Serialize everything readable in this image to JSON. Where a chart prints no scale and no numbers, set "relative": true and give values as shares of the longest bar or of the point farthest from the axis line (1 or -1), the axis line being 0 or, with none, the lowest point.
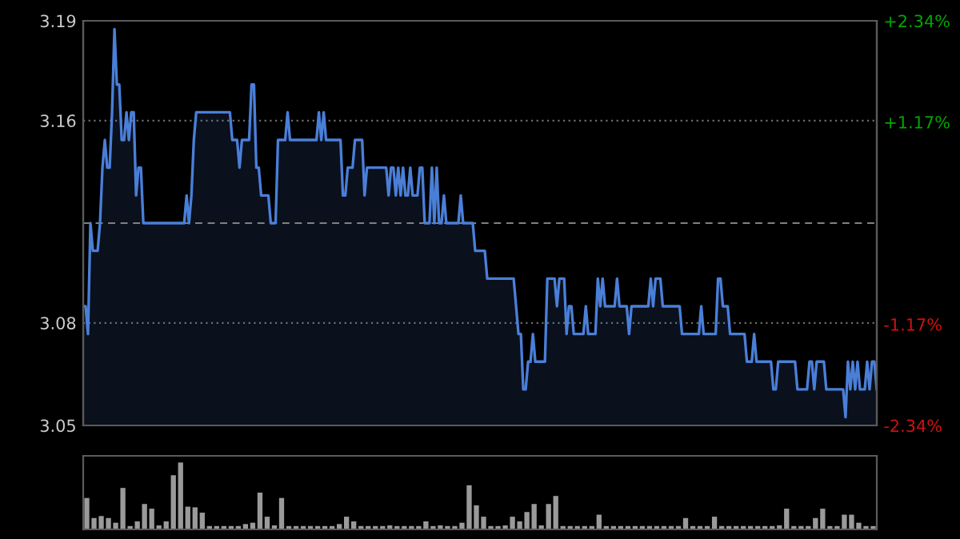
{
  "chart_data": [
    {
      "type": "area",
      "ylim": [
        3.047,
        3.193
      ],
      "yticks": [
        {
          "value": 3.047,
          "label": "3.05"
        },
        {
          "value": 3.084,
          "label": "3.08"
        },
        {
          "value": 3.157,
          "label": "3.16"
        },
        {
          "value": 3.193,
          "label": "3.19"
        }
      ],
      "y2lim": [
        -2.34,
        2.34
      ],
      "y2ticks": [
        {
          "value": -2.34,
          "label": "-2.34%"
        },
        {
          "value": -1.17,
          "label": "-1.17%"
        },
        {
          "value": 1.17,
          "label": "+1.17%"
        },
        {
          "value": 2.34,
          "label": "+2.34%"
        }
      ],
      "tick_labels": "y",
      "grid": "y",
      "marker": "none",
      "line_style": "solid",
      "ref_lines": [
        {
          "axis": "y",
          "value": 3.12,
          "label": null,
          "color": "#808080",
          "line_style": "dashed"
        }
      ],
      "categories": [
        null,
        null,
        null,
        null,
        null,
        null,
        null,
        null,
        null,
        null,
        null,
        null,
        null,
        null,
        null,
        null,
        null,
        null,
        null,
        null,
        null,
        null,
        null,
        null,
        null,
        null,
        null,
        null,
        null,
        null,
        null,
        null,
        null,
        null,
        null,
        null,
        null,
        null,
        null,
        null,
        null,
        null,
        null,
        null,
        null,
        null,
        null,
        null,
        null,
        null,
        null,
        null,
        null,
        null,
        null,
        null,
        null,
        null,
        null,
        null,
        null,
        null,
        null,
        null,
        null,
        null,
        null,
        null,
        null,
        null,
        null,
        null,
        null,
        null,
        null,
        null,
        null,
        null,
        null,
        null,
        null,
        null,
        null,
        null,
        null,
        null,
        null,
        null,
        null,
        null,
        null,
        null,
        null,
        null,
        null,
        null,
        null,
        null,
        null,
        null,
        null,
        null,
        null,
        null,
        null,
        null,
        null,
        null,
        null,
        null,
        null,
        null,
        null,
        null,
        null,
        null,
        null,
        null,
        null,
        null,
        null,
        null,
        null,
        null,
        null,
        null,
        null,
        null,
        null,
        null,
        null,
        null,
        null,
        null,
        null,
        null,
        null,
        null,
        null,
        null,
        null,
        null,
        null,
        null,
        null,
        null,
        null,
        null,
        null,
        null,
        null,
        null,
        null,
        null,
        null,
        null,
        null,
        null,
        null,
        null,
        null,
        null,
        null,
        null,
        null,
        null,
        null,
        null,
        null,
        null,
        null,
        null,
        null,
        null,
        null,
        null,
        null,
        null,
        null,
        null,
        null,
        null,
        null,
        null,
        null,
        null,
        null,
        null,
        null,
        null,
        null,
        null,
        null,
        null,
        null,
        null,
        null,
        null,
        null,
        null,
        null,
        null,
        null,
        null,
        null,
        null,
        null,
        null,
        null,
        null,
        null,
        null,
        null,
        null,
        null,
        null,
        null,
        null,
        null,
        null,
        null,
        null,
        null,
        null,
        null,
        null,
        null,
        null,
        null,
        null,
        null,
        null,
        null,
        null,
        null,
        null,
        null,
        null,
        null,
        null,
        null,
        null,
        null,
        null,
        null,
        null,
        null,
        null,
        null,
        null,
        null,
        null,
        null,
        null,
        null,
        null,
        null,
        null,
        null,
        null,
        null,
        null,
        null,
        null,
        null,
        null,
        null,
        null,
        null,
        null,
        null,
        null,
        null,
        null,
        null,
        null,
        null,
        null,
        null,
        null,
        null,
        null,
        null,
        null,
        null,
        null,
        null,
        null,
        null,
        null,
        null,
        null,
        null,
        null,
        null,
        null,
        null,
        null,
        null,
        null,
        null,
        null,
        null,
        null,
        null,
        null,
        null,
        null,
        null,
        null,
        null,
        null,
        null,
        null,
        null,
        null,
        null,
        null,
        null,
        null,
        null,
        null,
        null,
        null,
        null,
        null,
        null,
        null,
        null,
        null,
        null
      ],
      "series": [
        {
          "color": "#4a7fd8",
          "values": [
            3.09,
            3.09,
            3.08,
            3.12,
            3.11,
            3.11,
            3.11,
            3.12,
            3.14,
            3.15,
            3.14,
            3.14,
            3.16,
            3.19,
            3.17,
            3.17,
            3.15,
            3.15,
            3.16,
            3.15,
            3.16,
            3.16,
            3.13,
            3.14,
            3.14,
            3.12,
            3.12,
            3.12,
            3.12,
            3.12,
            3.12,
            3.12,
            3.12,
            3.12,
            3.12,
            3.12,
            3.12,
            3.12,
            3.12,
            3.12,
            3.12,
            3.12,
            3.12,
            3.13,
            3.12,
            3.13,
            3.15,
            3.16,
            3.16,
            3.16,
            3.16,
            3.16,
            3.16,
            3.16,
            3.16,
            3.16,
            3.16,
            3.16,
            3.16,
            3.16,
            3.16,
            3.16,
            3.15,
            3.15,
            3.15,
            3.14,
            3.15,
            3.15,
            3.15,
            3.15,
            3.17,
            3.17,
            3.14,
            3.14,
            3.13,
            3.13,
            3.13,
            3.13,
            3.12,
            3.12,
            3.12,
            3.15,
            3.15,
            3.15,
            3.15,
            3.16,
            3.15,
            3.15,
            3.15,
            3.15,
            3.15,
            3.15,
            3.15,
            3.15,
            3.15,
            3.15,
            3.15,
            3.15,
            3.16,
            3.15,
            3.16,
            3.15,
            3.15,
            3.15,
            3.15,
            3.15,
            3.15,
            3.15,
            3.13,
            3.13,
            3.14,
            3.14,
            3.14,
            3.15,
            3.15,
            3.15,
            3.15,
            3.13,
            3.14,
            3.14,
            3.14,
            3.14,
            3.14,
            3.14,
            3.14,
            3.14,
            3.14,
            3.13,
            3.14,
            3.14,
            3.13,
            3.14,
            3.13,
            3.14,
            3.13,
            3.13,
            3.14,
            3.13,
            3.13,
            3.13,
            3.14,
            3.14,
            3.12,
            3.12,
            3.12,
            3.14,
            3.12,
            3.14,
            3.12,
            3.12,
            3.13,
            3.12,
            3.12,
            3.12,
            3.12,
            3.12,
            3.12,
            3.13,
            3.12,
            3.12,
            3.12,
            3.12,
            3.12,
            3.11,
            3.11,
            3.11,
            3.11,
            3.11,
            3.1,
            3.1,
            3.1,
            3.1,
            3.1,
            3.1,
            3.1,
            3.1,
            3.1,
            3.1,
            3.1,
            3.1,
            3.09,
            3.08,
            3.08,
            3.06,
            3.06,
            3.07,
            3.07,
            3.08,
            3.07,
            3.07,
            3.07,
            3.07,
            3.07,
            3.1,
            3.1,
            3.1,
            3.1,
            3.09,
            3.1,
            3.1,
            3.1,
            3.08,
            3.09,
            3.09,
            3.08,
            3.08,
            3.08,
            3.08,
            3.08,
            3.09,
            3.08,
            3.08,
            3.08,
            3.08,
            3.1,
            3.09,
            3.1,
            3.09,
            3.09,
            3.09,
            3.09,
            3.09,
            3.1,
            3.09,
            3.09,
            3.09,
            3.09,
            3.08,
            3.09,
            3.09,
            3.09,
            3.09,
            3.09,
            3.09,
            3.09,
            3.09,
            3.1,
            3.09,
            3.1,
            3.1,
            3.1,
            3.09,
            3.09,
            3.09,
            3.09,
            3.09,
            3.09,
            3.09,
            3.09,
            3.08,
            3.08,
            3.08,
            3.08,
            3.08,
            3.08,
            3.08,
            3.08,
            3.09,
            3.08,
            3.08,
            3.08,
            3.08,
            3.08,
            3.08,
            3.1,
            3.1,
            3.09,
            3.09,
            3.09,
            3.08,
            3.08,
            3.08,
            3.08,
            3.08,
            3.08,
            3.08,
            3.07,
            3.07,
            3.07,
            3.08,
            3.07,
            3.07,
            3.07,
            3.07,
            3.07,
            3.07,
            3.07,
            3.06,
            3.06,
            3.07,
            3.07,
            3.07,
            3.07,
            3.07,
            3.07,
            3.07,
            3.07,
            3.06,
            3.06,
            3.06,
            3.06,
            3.06,
            3.07,
            3.07,
            3.06,
            3.07,
            3.07,
            3.07,
            3.07,
            3.06,
            3.06,
            3.06,
            3.06,
            3.06,
            3.06,
            3.06,
            3.06,
            3.05,
            3.07,
            3.06,
            3.07,
            3.06,
            3.07,
            3.06,
            3.06,
            3.06,
            3.07,
            3.06,
            3.07,
            3.07,
            3.06
          ]
        }
      ]
    },
    {
      "type": "bar",
      "relative": true,
      "tick_labels": false,
      "color": "#9a9a9a",
      "categories": [
        null,
        null,
        null,
        null,
        null,
        null,
        null,
        null,
        null,
        null,
        null,
        null,
        null,
        null,
        null,
        null,
        null,
        null,
        null,
        null,
        null,
        null,
        null,
        null,
        null,
        null,
        null,
        null,
        null,
        null,
        null,
        null,
        null,
        null,
        null,
        null,
        null,
        null,
        null,
        null,
        null,
        null,
        null,
        null,
        null,
        null,
        null,
        null,
        null,
        null,
        null,
        null,
        null,
        null,
        null,
        null,
        null,
        null,
        null,
        null,
        null,
        null,
        null,
        null,
        null,
        null,
        null,
        null,
        null,
        null,
        null,
        null,
        null,
        null,
        null,
        null,
        null,
        null,
        null,
        null,
        null,
        null,
        null,
        null,
        null,
        null,
        null,
        null,
        null,
        null,
        null,
        null,
        null,
        null,
        null,
        null,
        null,
        null,
        null,
        null,
        null,
        null,
        null,
        null,
        null,
        null,
        null,
        null,
        null,
        null
      ],
      "values": [
        0.47,
        0.17,
        0.2,
        0.17,
        0.1,
        0.62,
        0.05,
        0.12,
        0.38,
        0.31,
        0.06,
        0.12,
        0.81,
        1.0,
        0.34,
        0.33,
        0.25,
        0.05,
        0.05,
        0.05,
        0.05,
        0.05,
        0.08,
        0.1,
        0.55,
        0.19,
        0.06,
        0.47,
        0.05,
        0.05,
        0.05,
        0.05,
        0.05,
        0.05,
        0.05,
        0.08,
        0.19,
        0.12,
        0.05,
        0.05,
        0.05,
        0.05,
        0.06,
        0.05,
        0.05,
        0.05,
        0.05,
        0.12,
        0.05,
        0.06,
        0.05,
        0.05,
        0.1,
        0.66,
        0.36,
        0.19,
        0.05,
        0.05,
        0.06,
        0.19,
        0.12,
        0.26,
        0.38,
        0.06,
        0.38,
        0.5,
        0.05,
        0.05,
        0.05,
        0.05,
        0.05,
        0.22,
        0.05,
        0.05,
        0.05,
        0.05,
        0.05,
        0.05,
        0.05,
        0.05,
        0.05,
        0.05,
        0.05,
        0.17,
        0.05,
        0.05,
        0.05,
        0.19,
        0.05,
        0.05,
        0.05,
        0.05,
        0.05,
        0.05,
        0.05,
        0.05,
        0.06,
        0.31,
        0.05,
        0.05,
        0.05,
        0.17,
        0.31,
        0.05,
        0.05,
        0.22,
        0.22,
        0.1,
        0.05,
        0.05
      ]
    }
  ]
}
